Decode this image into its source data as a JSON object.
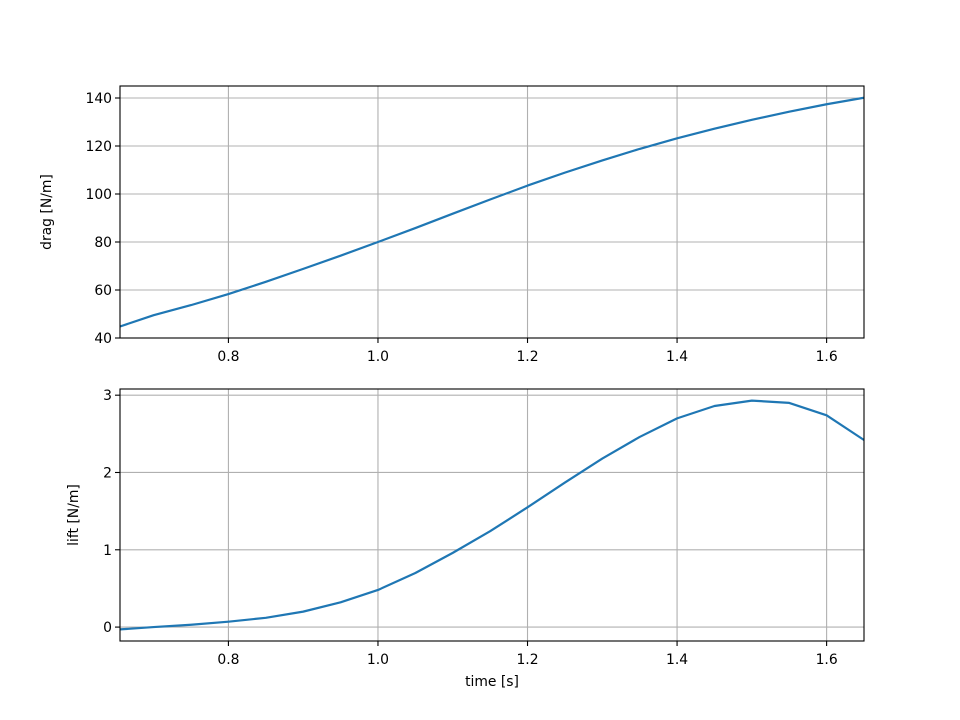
{
  "chart_data": [
    {
      "type": "line",
      "xlabel": "",
      "ylabel": "drag [N/m]",
      "xlim": [
        0.655,
        1.65
      ],
      "ylim": [
        40,
        145
      ],
      "xticks": [
        0.8,
        1.0,
        1.2,
        1.4,
        1.6
      ],
      "xtick_labels": [
        "0.8",
        "1.0",
        "1.2",
        "1.4",
        "1.6"
      ],
      "yticks": [
        40,
        60,
        80,
        100,
        120,
        140
      ],
      "ytick_labels": [
        "40",
        "60",
        "80",
        "100",
        "120",
        "140"
      ],
      "grid": true,
      "series": [
        {
          "color": "#1f77b4",
          "x": [
            0.655,
            0.7,
            0.75,
            0.8,
            0.85,
            0.9,
            0.95,
            1.0,
            1.05,
            1.1,
            1.15,
            1.2,
            1.25,
            1.3,
            1.35,
            1.4,
            1.45,
            1.5,
            1.55,
            1.6,
            1.65
          ],
          "y": [
            44.8,
            49.5,
            53.7,
            58.3,
            63.4,
            68.8,
            74.3,
            80.0,
            85.8,
            91.8,
            97.7,
            103.5,
            108.9,
            114.0,
            118.8,
            123.2,
            127.2,
            130.9,
            134.3,
            137.4,
            140.1
          ]
        }
      ]
    },
    {
      "type": "line",
      "xlabel": "time [s]",
      "ylabel": "lift [N/m]",
      "xlim": [
        0.655,
        1.65
      ],
      "ylim": [
        -0.18,
        3.08
      ],
      "xticks": [
        0.8,
        1.0,
        1.2,
        1.4,
        1.6
      ],
      "xtick_labels": [
        "0.8",
        "1.0",
        "1.2",
        "1.4",
        "1.6"
      ],
      "yticks": [
        0,
        1,
        2,
        3
      ],
      "ytick_labels": [
        "0",
        "1",
        "2",
        "3"
      ],
      "grid": true,
      "series": [
        {
          "color": "#1f77b4",
          "x": [
            0.655,
            0.7,
            0.75,
            0.8,
            0.85,
            0.9,
            0.95,
            1.0,
            1.05,
            1.1,
            1.15,
            1.2,
            1.25,
            1.3,
            1.35,
            1.4,
            1.45,
            1.5,
            1.55,
            1.6,
            1.65
          ],
          "y": [
            -0.03,
            0.0,
            0.03,
            0.07,
            0.12,
            0.2,
            0.32,
            0.48,
            0.7,
            0.96,
            1.24,
            1.55,
            1.87,
            2.18,
            2.46,
            2.7,
            2.86,
            2.93,
            2.9,
            2.74,
            2.42
          ]
        }
      ]
    }
  ]
}
